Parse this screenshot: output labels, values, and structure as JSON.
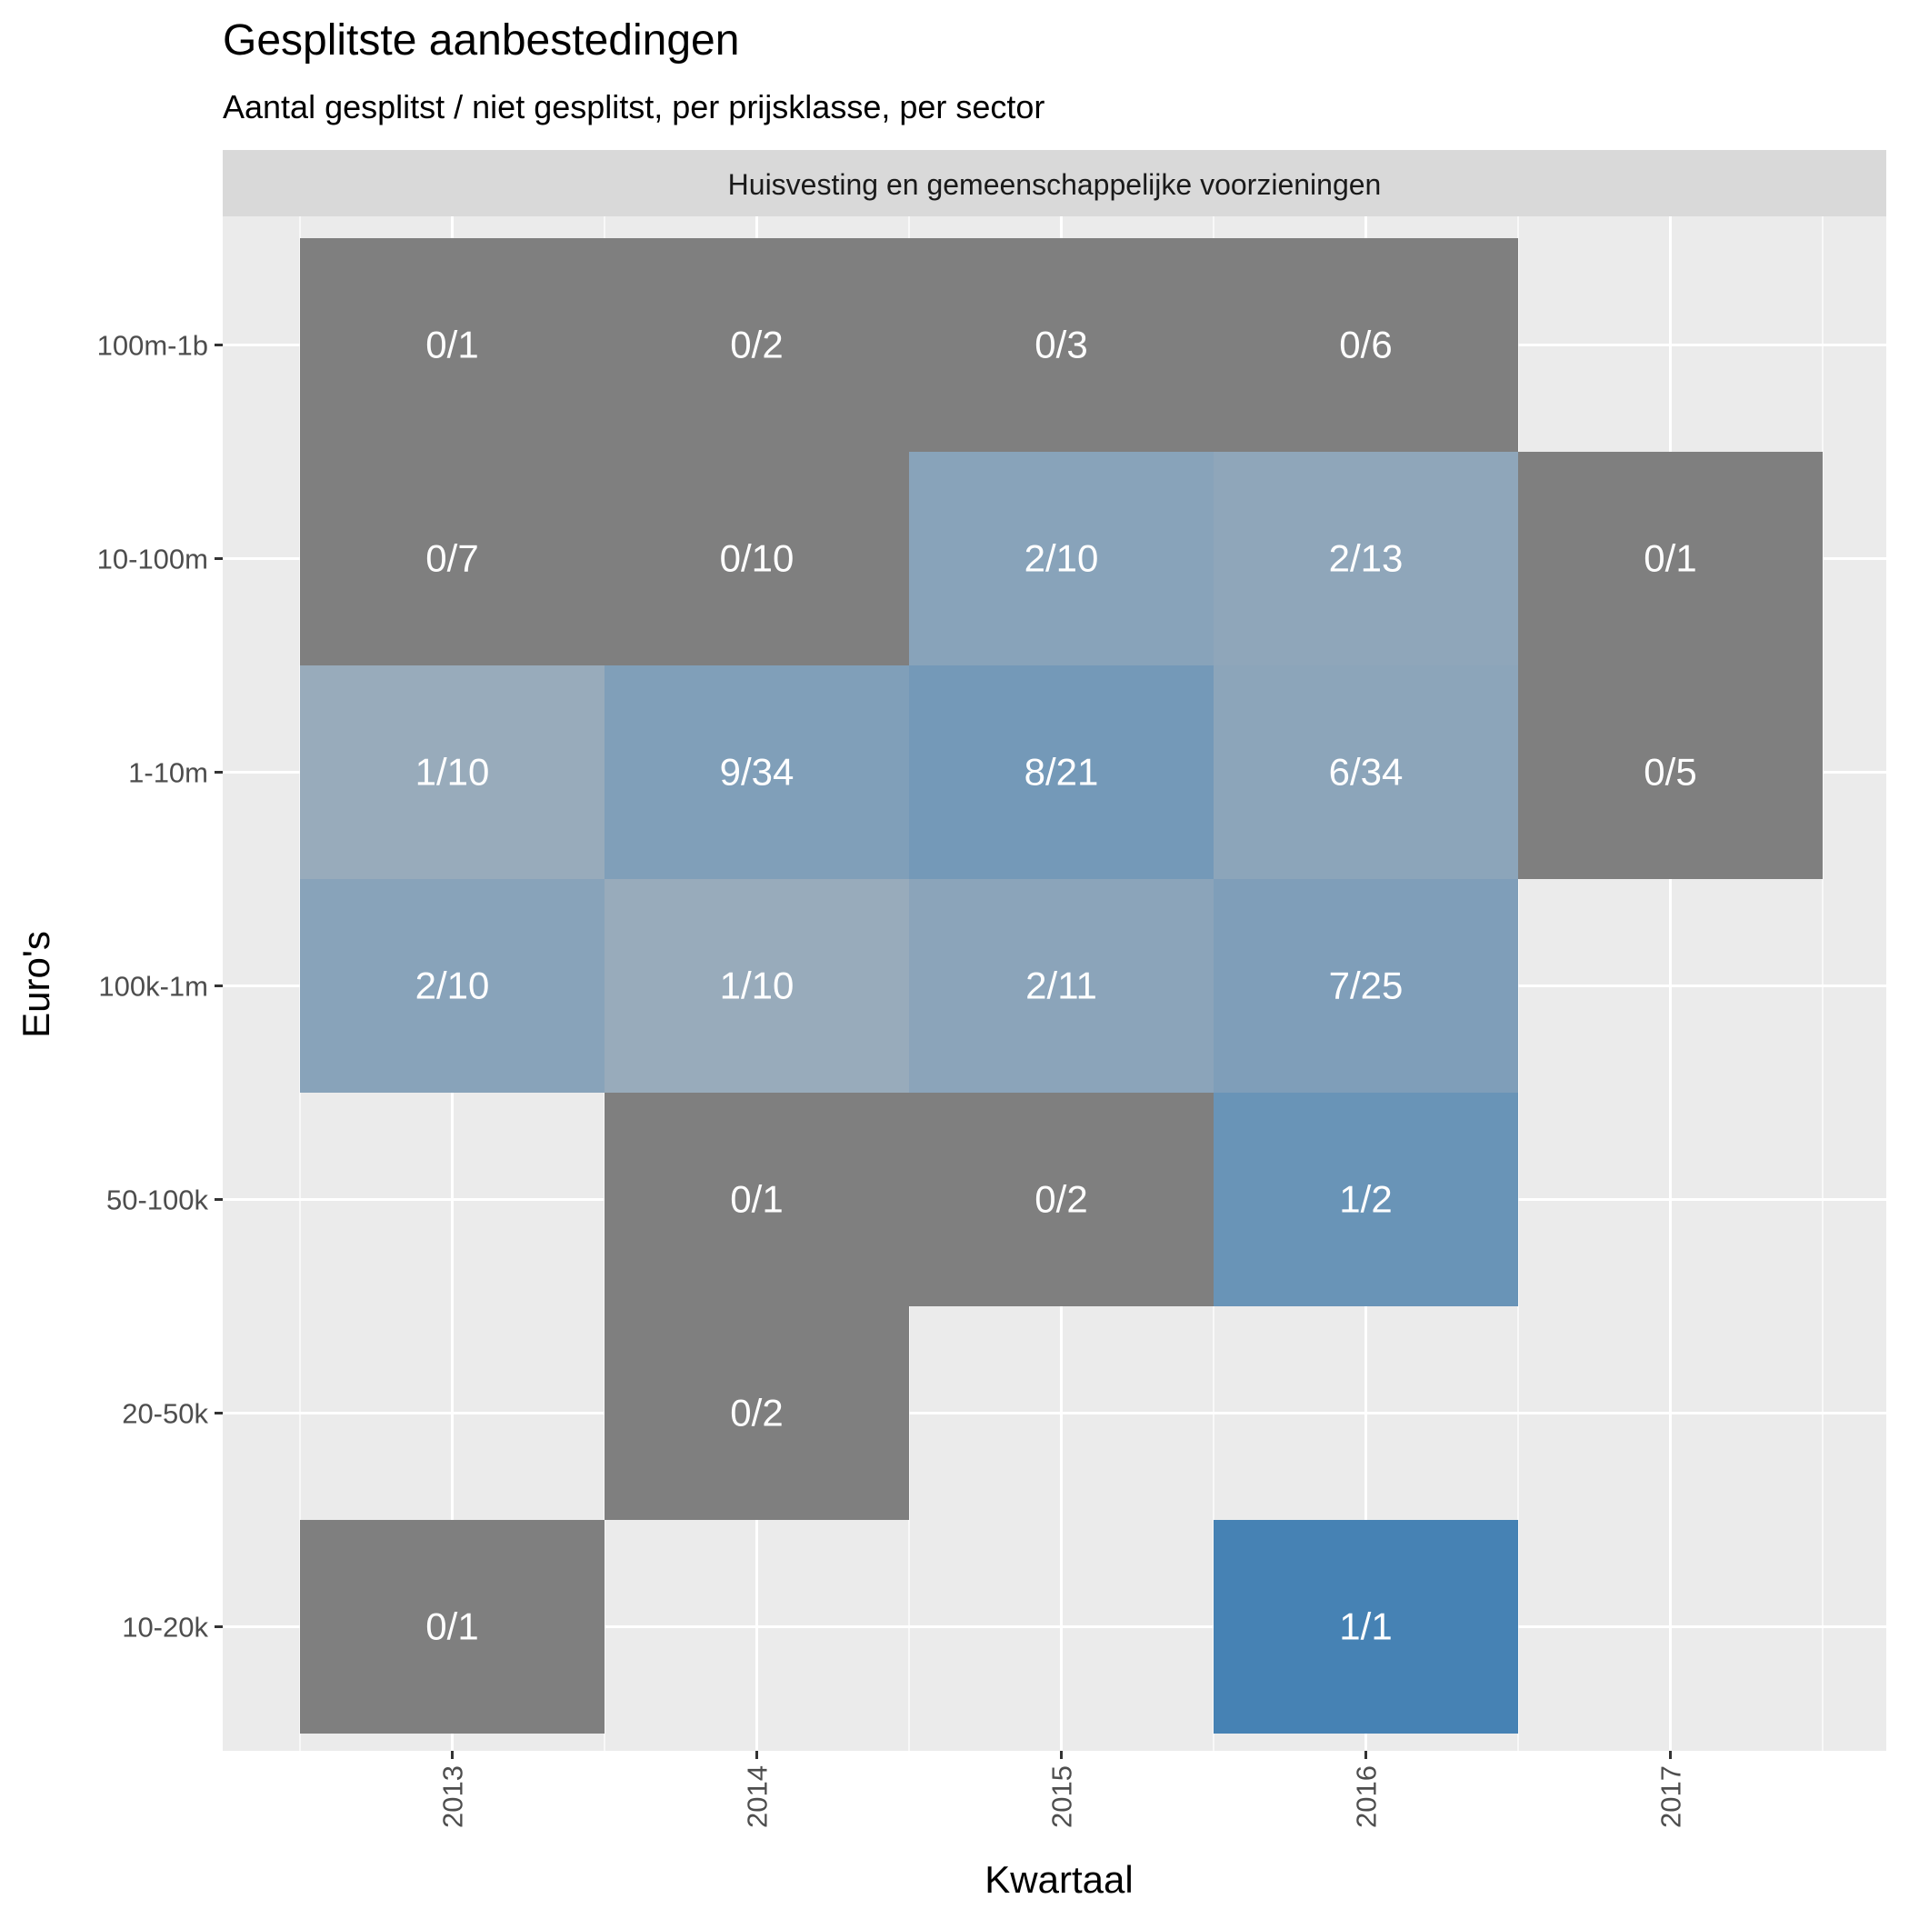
{
  "chart_data": {
    "type": "heatmap",
    "title": "Gesplitste aanbestedingen",
    "subtitle": "Aantal gesplitst / niet gesplitst, per prijsklasse, per sector",
    "facet_label": "Huisvesting en gemeenschappelijke voorzieningen",
    "xlabel": "Kwartaal",
    "ylabel": "Euro's",
    "x_categories": [
      "2013",
      "2014",
      "2015",
      "2016",
      "2017"
    ],
    "y_categories": [
      "100m-1b",
      "10-100m",
      "1-10m",
      "100k-1m",
      "50-100k",
      "20-50k",
      "10-20k"
    ],
    "grid": true,
    "colors": {
      "panel": "#ebebeb",
      "grid": "#ffffff",
      "strip": "#d9d9d9",
      "zero_fill": "#7f7f7f",
      "low_fill": "#bebebe",
      "high_fill": "#4682b4",
      "cell_text": "#ffffff",
      "axis_text": "#4d4d4d",
      "title_text": "#000000"
    },
    "cells": [
      {
        "x": "2013",
        "y": "100m-1b",
        "split": 0,
        "total": 1,
        "label": "0/1"
      },
      {
        "x": "2014",
        "y": "100m-1b",
        "split": 0,
        "total": 2,
        "label": "0/2"
      },
      {
        "x": "2015",
        "y": "100m-1b",
        "split": 0,
        "total": 3,
        "label": "0/3"
      },
      {
        "x": "2016",
        "y": "100m-1b",
        "split": 0,
        "total": 6,
        "label": "0/6"
      },
      {
        "x": "2013",
        "y": "10-100m",
        "split": 0,
        "total": 7,
        "label": "0/7"
      },
      {
        "x": "2014",
        "y": "10-100m",
        "split": 0,
        "total": 10,
        "label": "0/10"
      },
      {
        "x": "2015",
        "y": "10-100m",
        "split": 2,
        "total": 10,
        "label": "2/10"
      },
      {
        "x": "2016",
        "y": "10-100m",
        "split": 2,
        "total": 13,
        "label": "2/13"
      },
      {
        "x": "2017",
        "y": "10-100m",
        "split": 0,
        "total": 1,
        "label": "0/1"
      },
      {
        "x": "2013",
        "y": "1-10m",
        "split": 1,
        "total": 10,
        "label": "1/10"
      },
      {
        "x": "2014",
        "y": "1-10m",
        "split": 9,
        "total": 34,
        "label": "9/34"
      },
      {
        "x": "2015",
        "y": "1-10m",
        "split": 8,
        "total": 21,
        "label": "8/21"
      },
      {
        "x": "2016",
        "y": "1-10m",
        "split": 6,
        "total": 34,
        "label": "6/34"
      },
      {
        "x": "2017",
        "y": "1-10m",
        "split": 0,
        "total": 5,
        "label": "0/5"
      },
      {
        "x": "2013",
        "y": "100k-1m",
        "split": 2,
        "total": 10,
        "label": "2/10"
      },
      {
        "x": "2014",
        "y": "100k-1m",
        "split": 1,
        "total": 10,
        "label": "1/10"
      },
      {
        "x": "2015",
        "y": "100k-1m",
        "split": 2,
        "total": 11,
        "label": "2/11"
      },
      {
        "x": "2016",
        "y": "100k-1m",
        "split": 7,
        "total": 25,
        "label": "7/25"
      },
      {
        "x": "2014",
        "y": "50-100k",
        "split": 0,
        "total": 1,
        "label": "0/1"
      },
      {
        "x": "2015",
        "y": "50-100k",
        "split": 0,
        "total": 2,
        "label": "0/2"
      },
      {
        "x": "2016",
        "y": "50-100k",
        "split": 1,
        "total": 2,
        "label": "1/2"
      },
      {
        "x": "2014",
        "y": "20-50k",
        "split": 0,
        "total": 2,
        "label": "0/2"
      },
      {
        "x": "2013",
        "y": "10-20k",
        "split": 0,
        "total": 1,
        "label": "0/1"
      },
      {
        "x": "2016",
        "y": "10-20k",
        "split": 1,
        "total": 1,
        "label": "1/1"
      }
    ]
  }
}
